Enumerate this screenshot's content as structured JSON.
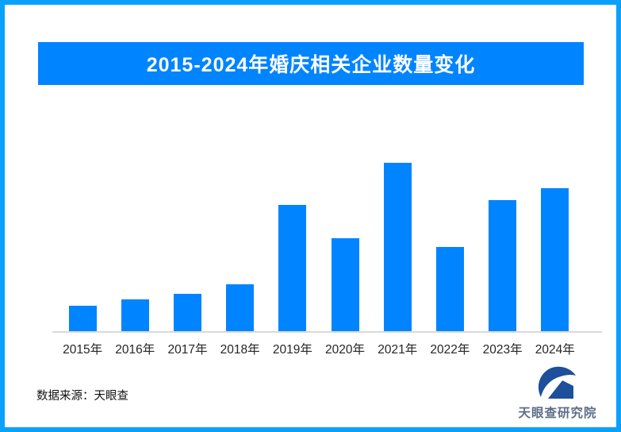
{
  "page": {
    "background": "#FFFFFF",
    "border_color": "#0AA1FB"
  },
  "header": {
    "title": "2015-2024年婚庆相关企业数量变化",
    "banner_color": "#0084FF",
    "title_color": "#FFFFFF"
  },
  "chart_data": {
    "type": "bar",
    "title": "2015-2024年婚庆相关企业数量变化",
    "categories": [
      "2015年",
      "2016年",
      "2017年",
      "2018年",
      "2019年",
      "2020年",
      "2021年",
      "2022年",
      "2023年",
      "2024年"
    ],
    "values": [
      15,
      19,
      22,
      28,
      75,
      55,
      100,
      50,
      78,
      85
    ],
    "value_axis_note": "no numeric y-axis or data labels shown; values are relative bar heights with tallest bar (2021) = 100",
    "bar_color": "#0084FF",
    "axis_line_color": "#D9D9D9",
    "tick_label_color": "#262626",
    "xlabel": "",
    "ylabel": "",
    "legend": "none",
    "gridlines": false
  },
  "footer": {
    "source_label": "数据来源：天眼查"
  },
  "logo": {
    "text": "天眼查研究院",
    "mark_icon": "tianyancha-eye-roof-logo",
    "mark_color": "#1D4F9B",
    "text_color": "#5D6F85"
  }
}
